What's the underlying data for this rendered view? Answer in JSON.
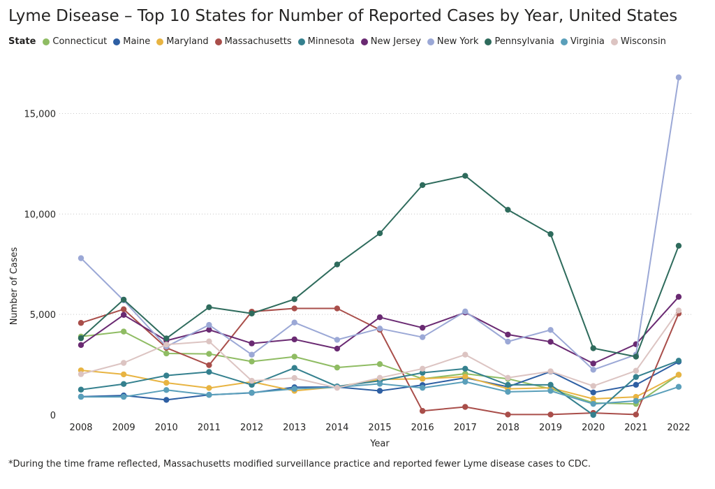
{
  "title": "Lyme Disease – Top 10 States for Number of Reported Cases by Year, United States",
  "legend_title": "State",
  "footnote": "*During the time frame reflected, Massachusetts modified surveillance practice and reported fewer Lyme disease cases to CDC.",
  "chart_data": {
    "type": "line",
    "title": "Lyme Disease – Top 10 States for Number of Reported Cases by Year, United States",
    "xlabel": "Year",
    "ylabel": "Number of Cases",
    "ylim": [
      0,
      17000
    ],
    "yticks": [
      0,
      5000,
      10000,
      15000
    ],
    "ytick_labels": [
      "0",
      "5,000",
      "10,000",
      "15,000"
    ],
    "grid": "horizontal-dotted",
    "legend_position": "top-left",
    "x": [
      "2008",
      "2009",
      "2010",
      "2011",
      "2012",
      "2013",
      "2014",
      "2015",
      "2016",
      "2017",
      "2018",
      "2019",
      "2020",
      "2021",
      "2022"
    ],
    "series": [
      {
        "name": "Connecticut",
        "color": "#8fbc63",
        "values": [
          3900,
          4150,
          3060,
          3040,
          2660,
          2900,
          2360,
          2530,
          1800,
          2050,
          1800,
          1300,
          600,
          550,
          2000
        ]
      },
      {
        "name": "Maine",
        "color": "#2e5fa3",
        "values": [
          910,
          970,
          750,
          1000,
          1100,
          1380,
          1390,
          1200,
          1490,
          1850,
          1400,
          2160,
          1120,
          1500,
          2650
        ]
      },
      {
        "name": "Maryland",
        "color": "#e8b442",
        "values": [
          2220,
          2020,
          1600,
          1340,
          1650,
          1200,
          1400,
          1770,
          1800,
          1900,
          1300,
          1350,
          800,
          900,
          2000
        ]
      },
      {
        "name": "Massachusetts",
        "color": "#a94e4a",
        "values": [
          4580,
          5260,
          3340,
          2480,
          5140,
          5300,
          5300,
          4240,
          200,
          400,
          20,
          20,
          100,
          20,
          5050
        ]
      },
      {
        "name": "Minnesota",
        "color": "#34808e",
        "values": [
          1260,
          1540,
          1960,
          2140,
          1500,
          2340,
          1420,
          1700,
          2100,
          2300,
          1500,
          1500,
          0,
          1890,
          2700
        ]
      },
      {
        "name": "New Jersey",
        "color": "#6a2a72",
        "values": [
          3480,
          4980,
          3700,
          4240,
          3560,
          3760,
          3300,
          4860,
          4340,
          5100,
          4000,
          3640,
          2560,
          3520,
          5880
        ]
      },
      {
        "name": "New York",
        "color": "#9ba8d6",
        "values": [
          7800,
          5700,
          3400,
          4480,
          3000,
          4600,
          3740,
          4300,
          3870,
          5150,
          3650,
          4230,
          2250,
          3000,
          16800
        ]
      },
      {
        "name": "Pennsylvania",
        "color": "#2e6b5c",
        "values": [
          3820,
          5740,
          3810,
          5360,
          5050,
          5760,
          7490,
          9040,
          11440,
          11900,
          10210,
          9000,
          3320,
          2900,
          8420
        ]
      },
      {
        "name": "Virginia",
        "color": "#5a9fba",
        "values": [
          900,
          900,
          1240,
          1000,
          1110,
          1300,
          1380,
          1550,
          1350,
          1650,
          1150,
          1200,
          550,
          700,
          1400
        ]
      },
      {
        "name": "Wisconsin",
        "color": "#dcc4c2",
        "values": [
          2030,
          2590,
          3500,
          3660,
          1700,
          1840,
          1350,
          1850,
          2300,
          3000,
          1850,
          2170,
          1440,
          2200,
          5200
        ]
      }
    ]
  }
}
